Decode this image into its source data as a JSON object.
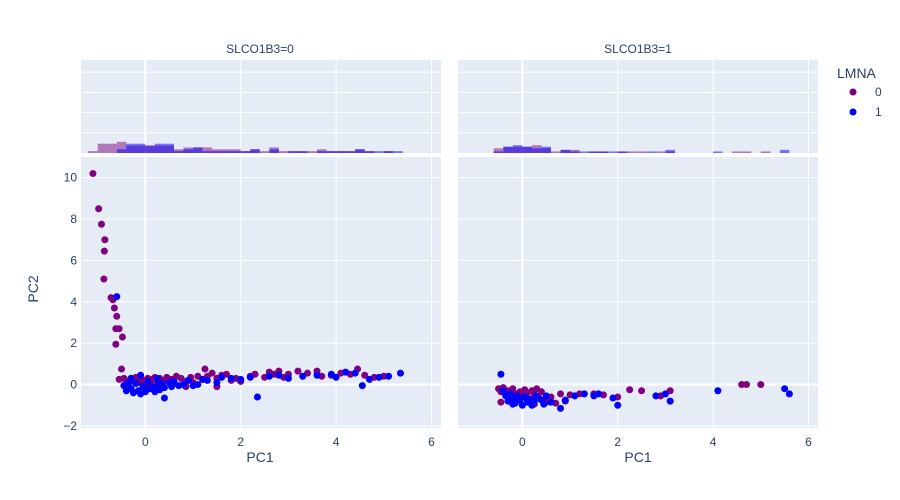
{
  "chart_data": {
    "type": "scatter",
    "library_style": "plotly",
    "facet_labels": [
      "SLCO1B3=0",
      "SLCO1B3=1"
    ],
    "xlabel": "PC1",
    "ylabel": "PC2",
    "xlim": [
      -1.35,
      6.2
    ],
    "ylim": [
      -2.1,
      11.0
    ],
    "x_ticks": [
      0,
      2,
      4,
      6
    ],
    "y_ticks": [
      -2,
      0,
      2,
      4,
      6,
      8,
      10
    ],
    "marginal": "histogram",
    "hist_bin_width": 0.2,
    "hist_ylim": [
      0,
      95
    ],
    "legend": {
      "title": "LMNA",
      "placement": "top-right",
      "entries": [
        "0",
        "1"
      ]
    },
    "series": [
      {
        "name": "0",
        "color": "#800080",
        "facets": [
          {
            "points": [
              [
                -1.1,
                10.2
              ],
              [
                -0.98,
                8.5
              ],
              [
                -0.92,
                7.75
              ],
              [
                -0.85,
                7.0
              ],
              [
                -0.86,
                6.45
              ],
              [
                -0.87,
                5.1
              ],
              [
                -0.72,
                4.2
              ],
              [
                -0.68,
                4.1
              ],
              [
                -0.65,
                3.7
              ],
              [
                -0.6,
                3.3
              ],
              [
                -0.62,
                2.7
              ],
              [
                -0.55,
                2.7
              ],
              [
                -0.48,
                2.3
              ],
              [
                -0.62,
                1.95
              ],
              [
                -0.5,
                0.75
              ],
              [
                -0.55,
                0.25
              ],
              [
                -0.45,
                0.3
              ],
              [
                -0.4,
                0.1
              ],
              [
                -0.3,
                0.3
              ],
              [
                -0.25,
                0.15
              ],
              [
                -0.2,
                0.35
              ],
              [
                -0.15,
                0.1
              ],
              [
                -0.1,
                0.3
              ],
              [
                -0.05,
                0.2
              ],
              [
                0.05,
                0.3
              ],
              [
                0.1,
                0.1
              ],
              [
                0.15,
                0.25
              ],
              [
                0.2,
                0.35
              ],
              [
                0.25,
                0.15
              ],
              [
                0.3,
                0.3
              ],
              [
                0.4,
                0.2
              ],
              [
                0.45,
                0.35
              ],
              [
                0.55,
                0.25
              ],
              [
                0.6,
                0.05
              ],
              [
                0.65,
                0.4
              ],
              [
                0.75,
                0.3
              ],
              [
                0.85,
                0.15
              ],
              [
                0.95,
                0.35
              ],
              [
                1.0,
                0.1
              ],
              [
                1.1,
                0.4
              ],
              [
                1.2,
                0.25
              ],
              [
                1.25,
                0.75
              ],
              [
                1.3,
                0.4
              ],
              [
                1.4,
                0.55
              ],
              [
                1.5,
                0.3
              ],
              [
                1.6,
                0.45
              ],
              [
                1.7,
                0.5
              ],
              [
                1.8,
                0.2
              ],
              [
                1.9,
                0.3
              ],
              [
                2.0,
                0.15
              ],
              [
                2.2,
                0.4
              ],
              [
                2.3,
                0.5
              ],
              [
                2.5,
                0.35
              ],
              [
                2.6,
                0.6
              ],
              [
                2.7,
                0.5
              ],
              [
                2.8,
                0.65
              ],
              [
                2.9,
                0.35
              ],
              [
                3.0,
                0.5
              ],
              [
                3.2,
                0.65
              ],
              [
                3.4,
                0.55
              ],
              [
                3.6,
                0.65
              ],
              [
                3.7,
                0.4
              ],
              [
                3.9,
                0.45
              ],
              [
                4.1,
                0.55
              ],
              [
                4.3,
                0.5
              ],
              [
                4.45,
                0.75
              ],
              [
                4.6,
                0.45
              ],
              [
                4.8,
                0.35
              ],
              [
                5.0,
                0.4
              ],
              [
                -0.35,
                -0.1
              ],
              [
                0.0,
                -0.05
              ],
              [
                0.35,
                -0.15
              ],
              [
                1.5,
                -0.1
              ],
              [
                0.85,
                -0.1
              ]
            ]
          },
          {
            "points": [
              [
                -0.5,
                -0.2
              ],
              [
                -0.45,
                -0.35
              ],
              [
                -0.4,
                -0.15
              ],
              [
                -0.35,
                -0.5
              ],
              [
                -0.3,
                -0.3
              ],
              [
                -0.25,
                -0.6
              ],
              [
                -0.2,
                -0.2
              ],
              [
                -0.15,
                -0.45
              ],
              [
                -0.1,
                -0.7
              ],
              [
                -0.05,
                -0.35
              ],
              [
                0.0,
                -0.55
              ],
              [
                0.05,
                -0.25
              ],
              [
                0.1,
                -0.4
              ],
              [
                0.15,
                -0.8
              ],
              [
                0.2,
                -0.3
              ],
              [
                0.25,
                -0.5
              ],
              [
                0.3,
                -0.2
              ],
              [
                0.35,
                -0.65
              ],
              [
                0.4,
                -0.35
              ],
              [
                0.5,
                -0.85
              ],
              [
                0.6,
                -0.6
              ],
              [
                0.7,
                -0.9
              ],
              [
                0.8,
                -0.45
              ],
              [
                0.9,
                -0.8
              ],
              [
                1.0,
                -0.5
              ],
              [
                1.2,
                -0.45
              ],
              [
                1.5,
                -0.45
              ],
              [
                1.7,
                -0.5
              ],
              [
                2.0,
                -0.6
              ],
              [
                2.25,
                -0.25
              ],
              [
                2.5,
                -0.3
              ],
              [
                2.9,
                -0.55
              ],
              [
                3.1,
                -0.3
              ],
              [
                4.6,
                0.0
              ],
              [
                4.7,
                0.0
              ],
              [
                5.0,
                0.0
              ],
              [
                -0.45,
                -0.85
              ],
              [
                0.25,
                -0.95
              ]
            ]
          }
        ]
      },
      {
        "name": "1",
        "color": "#0000ff",
        "facets": [
          {
            "points": [
              [
                -0.6,
                4.25
              ],
              [
                -0.45,
                -0.05
              ],
              [
                -0.4,
                -0.3
              ],
              [
                -0.35,
                0.1
              ],
              [
                -0.3,
                -0.2
              ],
              [
                -0.25,
                -0.4
              ],
              [
                -0.2,
                0.05
              ],
              [
                -0.15,
                -0.3
              ],
              [
                -0.1,
                -0.45
              ],
              [
                -0.05,
                -0.1
              ],
              [
                0.0,
                -0.35
              ],
              [
                0.05,
                0.15
              ],
              [
                0.1,
                -0.2
              ],
              [
                0.15,
                -0.1
              ],
              [
                0.2,
                -0.35
              ],
              [
                0.25,
                -0.05
              ],
              [
                0.3,
                -0.25
              ],
              [
                0.35,
                0.05
              ],
              [
                0.4,
                -0.15
              ],
              [
                0.5,
                0.1
              ],
              [
                0.55,
                -0.1
              ],
              [
                0.6,
                0.15
              ],
              [
                0.7,
                -0.05
              ],
              [
                0.8,
                0.0
              ],
              [
                0.9,
                0.2
              ],
              [
                1.0,
                -0.05
              ],
              [
                1.1,
                0.0
              ],
              [
                1.2,
                0.25
              ],
              [
                1.3,
                0.2
              ],
              [
                1.5,
                0.1
              ],
              [
                1.6,
                0.35
              ],
              [
                1.8,
                0.3
              ],
              [
                2.0,
                0.25
              ],
              [
                2.2,
                0.35
              ],
              [
                2.35,
                -0.6
              ],
              [
                2.6,
                0.4
              ],
              [
                2.8,
                0.45
              ],
              [
                3.0,
                0.3
              ],
              [
                3.3,
                0.4
              ],
              [
                3.6,
                0.45
              ],
              [
                3.9,
                0.5
              ],
              [
                4.0,
                0.35
              ],
              [
                4.2,
                0.6
              ],
              [
                4.4,
                0.55
              ],
              [
                4.55,
                -0.05
              ],
              [
                4.7,
                0.25
              ],
              [
                4.9,
                0.35
              ],
              [
                5.1,
                0.4
              ],
              [
                5.35,
                0.55
              ],
              [
                0.4,
                -0.65
              ],
              [
                -0.1,
                0.45
              ],
              [
                0.25,
                0.3
              ],
              [
                -0.3,
                0.3
              ]
            ]
          },
          {
            "points": [
              [
                -0.45,
                0.5
              ],
              [
                -0.4,
                -0.3
              ],
              [
                -0.35,
                -0.55
              ],
              [
                -0.3,
                -0.8
              ],
              [
                -0.25,
                -0.45
              ],
              [
                -0.2,
                -0.65
              ],
              [
                -0.15,
                -0.9
              ],
              [
                -0.1,
                -0.55
              ],
              [
                -0.05,
                -0.75
              ],
              [
                0.0,
                -1.0
              ],
              [
                0.05,
                -0.6
              ],
              [
                0.1,
                -0.85
              ],
              [
                0.15,
                -0.7
              ],
              [
                0.2,
                -1.0
              ],
              [
                0.25,
                -0.8
              ],
              [
                0.3,
                -0.55
              ],
              [
                0.4,
                -0.75
              ],
              [
                0.5,
                -0.55
              ],
              [
                0.6,
                -0.85
              ],
              [
                0.8,
                -1.15
              ],
              [
                0.9,
                -0.75
              ],
              [
                1.1,
                -0.55
              ],
              [
                1.3,
                -0.45
              ],
              [
                1.5,
                -0.55
              ],
              [
                1.6,
                -0.45
              ],
              [
                1.9,
                -0.65
              ],
              [
                2.0,
                -1.0
              ],
              [
                2.8,
                -0.55
              ],
              [
                3.0,
                -0.45
              ],
              [
                3.1,
                -0.8
              ],
              [
                4.1,
                -0.3
              ],
              [
                5.5,
                -0.2
              ],
              [
                5.6,
                -0.45
              ],
              [
                -0.2,
                -0.95
              ],
              [
                0.45,
                -0.95
              ]
            ]
          }
        ]
      }
    ]
  }
}
